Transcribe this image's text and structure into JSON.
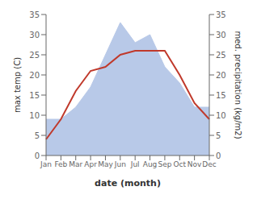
{
  "chart_data": {
    "type": "line",
    "x_label": "date (month)",
    "y_label": "max temp (C)",
    "y2_label": "med. precipitation (kg/m2)",
    "categories": [
      "Jan",
      "Feb",
      "Mar",
      "Apr",
      "May",
      "Jun",
      "Jul",
      "Aug",
      "Sep",
      "Oct",
      "Nov",
      "Dec"
    ],
    "series": [
      {
        "type": "area",
        "color": "#b8c9e8",
        "axis": "y2",
        "values": [
          9,
          9,
          12,
          17,
          25,
          33,
          28,
          30,
          22,
          18,
          12,
          12
        ]
      },
      {
        "type": "line",
        "color": "#c0392b",
        "values": [
          4,
          9,
          16,
          21,
          22,
          25,
          26,
          26,
          26,
          20,
          13,
          9
        ]
      }
    ],
    "ylim": [
      0,
      35
    ],
    "yticks": [
      0,
      5,
      10,
      15,
      20,
      25,
      30,
      35
    ],
    "y2lim": [
      0,
      35
    ],
    "y2ticks": [
      0,
      5,
      10,
      15,
      20,
      25,
      30,
      35
    ],
    "grid": false
  }
}
